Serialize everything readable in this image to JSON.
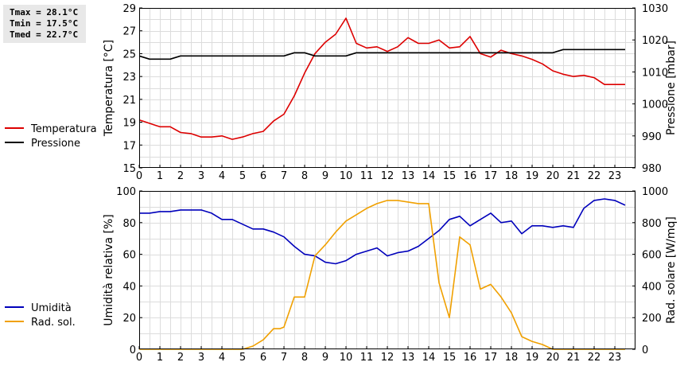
{
  "stats": {
    "tmax": "Tmax = 28.1°C",
    "tmin": "Tmin = 17.5°C",
    "tmed": "Tmed = 22.7°C"
  },
  "chart_data": [
    {
      "type": "line",
      "ylabel": "Temperatura [°C]",
      "y2label": "Pressione [mbar]",
      "xlim": [
        0,
        24
      ],
      "ylim": [
        15,
        29
      ],
      "y2lim": [
        980,
        1030
      ],
      "xticks": [
        "0",
        "1",
        "2",
        "3",
        "4",
        "5",
        "6",
        "7",
        "8",
        "9",
        "10",
        "11",
        "12",
        "13",
        "14",
        "15",
        "16",
        "17",
        "18",
        "19",
        "20",
        "21",
        "22",
        "23"
      ],
      "yticks": [
        "15",
        "17",
        "19",
        "21",
        "23",
        "25",
        "27",
        "29"
      ],
      "y2ticks": [
        "980",
        "990",
        "1000",
        "1010",
        "1020",
        "1030"
      ],
      "grid": true,
      "legend_position": "left",
      "series": [
        {
          "name": "Temperatura",
          "color": "#dd0000",
          "axis": "left",
          "x": [
            0,
            0.17,
            0.5,
            0.83,
            1,
            1.5,
            2,
            2.5,
            3,
            3.5,
            4,
            4.5,
            5,
            5.5,
            6,
            6.5,
            7,
            7.5,
            8,
            8.5,
            9,
            9.5,
            10,
            10.5,
            11,
            11.5,
            12,
            12.5,
            13,
            13.5,
            14,
            14.5,
            15,
            15.5,
            16,
            16.5,
            17,
            17.5,
            18,
            18.5,
            19,
            19.5,
            20,
            20.5,
            21,
            21.5,
            22,
            22.5,
            23,
            23.5
          ],
          "y": [
            19.2,
            19.1,
            18.9,
            18.7,
            18.6,
            18.6,
            18.1,
            18.0,
            17.7,
            17.7,
            17.8,
            17.5,
            17.7,
            18.0,
            18.2,
            19.1,
            19.7,
            21.3,
            23.3,
            25.0,
            26.0,
            26.7,
            28.1,
            25.9,
            25.5,
            25.6,
            25.2,
            25.6,
            26.4,
            25.9,
            25.9,
            26.2,
            25.5,
            25.6,
            26.5,
            25.0,
            24.7,
            25.3,
            25.0,
            24.8,
            24.5,
            24.1,
            23.5,
            23.2,
            23.0,
            23.1,
            22.9,
            22.3,
            22.3,
            22.3
          ]
        },
        {
          "name": "Pressione",
          "color": "#000000",
          "axis": "right",
          "x": [
            0,
            0.5,
            1,
            1.5,
            2,
            2.5,
            3,
            3.5,
            4,
            4.5,
            5,
            5.5,
            6,
            6.5,
            7,
            7.5,
            8,
            8.5,
            9,
            9.5,
            10,
            10.5,
            11,
            11.5,
            12,
            13,
            14,
            15,
            16,
            17,
            18,
            19,
            20,
            20.5,
            21,
            22,
            23,
            23.5
          ],
          "y": [
            1015,
            1014,
            1014,
            1014,
            1015,
            1015,
            1015,
            1015,
            1015,
            1015,
            1015,
            1015,
            1015,
            1015,
            1015,
            1016,
            1016,
            1015,
            1015,
            1015,
            1015,
            1016,
            1016,
            1016,
            1016,
            1016,
            1016,
            1016,
            1016,
            1016,
            1016,
            1016,
            1016,
            1017,
            1017,
            1017,
            1017,
            1017
          ]
        }
      ]
    },
    {
      "type": "line",
      "ylabel": "Umidità relativa [%]",
      "y2label": "Rad. solare [W/mq]",
      "xlim": [
        0,
        24
      ],
      "ylim": [
        0,
        100
      ],
      "y2lim": [
        0,
        1000
      ],
      "xticks": [
        "0",
        "1",
        "2",
        "3",
        "4",
        "5",
        "6",
        "7",
        "8",
        "9",
        "10",
        "11",
        "12",
        "13",
        "14",
        "15",
        "16",
        "17",
        "18",
        "19",
        "20",
        "21",
        "22",
        "23"
      ],
      "yticks": [
        "0",
        "20",
        "40",
        "60",
        "80",
        "100"
      ],
      "y2ticks": [
        "0",
        "200",
        "400",
        "600",
        "800",
        "1000"
      ],
      "grid": true,
      "legend_position": "left",
      "series": [
        {
          "name": "Umidità",
          "color": "#0000bb",
          "axis": "left",
          "x": [
            0,
            0.5,
            1,
            1.5,
            2,
            2.5,
            3,
            3.5,
            4,
            4.5,
            5,
            5.5,
            6,
            6.5,
            7,
            7.5,
            8,
            8.5,
            9,
            9.5,
            10,
            10.5,
            11,
            11.5,
            12,
            12.5,
            13,
            13.5,
            14,
            14.5,
            15,
            15.5,
            16,
            16.5,
            17,
            17.5,
            18,
            18.5,
            19,
            19.5,
            20,
            20.5,
            21,
            21.5,
            22,
            22.5,
            23,
            23.5
          ],
          "y": [
            86,
            86,
            87,
            87,
            88,
            88,
            88,
            86,
            82,
            82,
            79,
            76,
            76,
            74,
            71,
            65,
            60,
            59,
            55,
            54,
            56,
            60,
            62,
            64,
            59,
            61,
            62,
            65,
            70,
            75,
            82,
            84,
            78,
            82,
            86,
            80,
            81,
            73,
            78,
            78,
            77,
            78,
            77,
            89,
            94,
            95,
            94,
            91
          ]
        },
        {
          "name": "Rad. sol.",
          "color": "#f0a000",
          "axis": "right",
          "x": [
            0,
            1,
            2,
            3,
            4,
            5,
            5.5,
            6,
            6.5,
            6.8,
            7,
            7.5,
            8,
            8.5,
            9,
            9.5,
            10,
            10.5,
            11,
            11.5,
            12,
            12.5,
            13,
            13.5,
            14,
            14.5,
            15,
            15.5,
            16,
            16.5,
            17,
            17.5,
            18,
            18.5,
            19,
            19.5,
            20,
            20.5,
            21,
            22,
            23,
            23.5
          ],
          "y": [
            0,
            0,
            0,
            0,
            0,
            0,
            20,
            60,
            130,
            130,
            140,
            330,
            330,
            590,
            660,
            740,
            810,
            850,
            890,
            920,
            940,
            940,
            930,
            920,
            920,
            420,
            200,
            710,
            660,
            380,
            410,
            330,
            230,
            80,
            50,
            30,
            0,
            0,
            0,
            0,
            0,
            0
          ]
        }
      ]
    }
  ]
}
